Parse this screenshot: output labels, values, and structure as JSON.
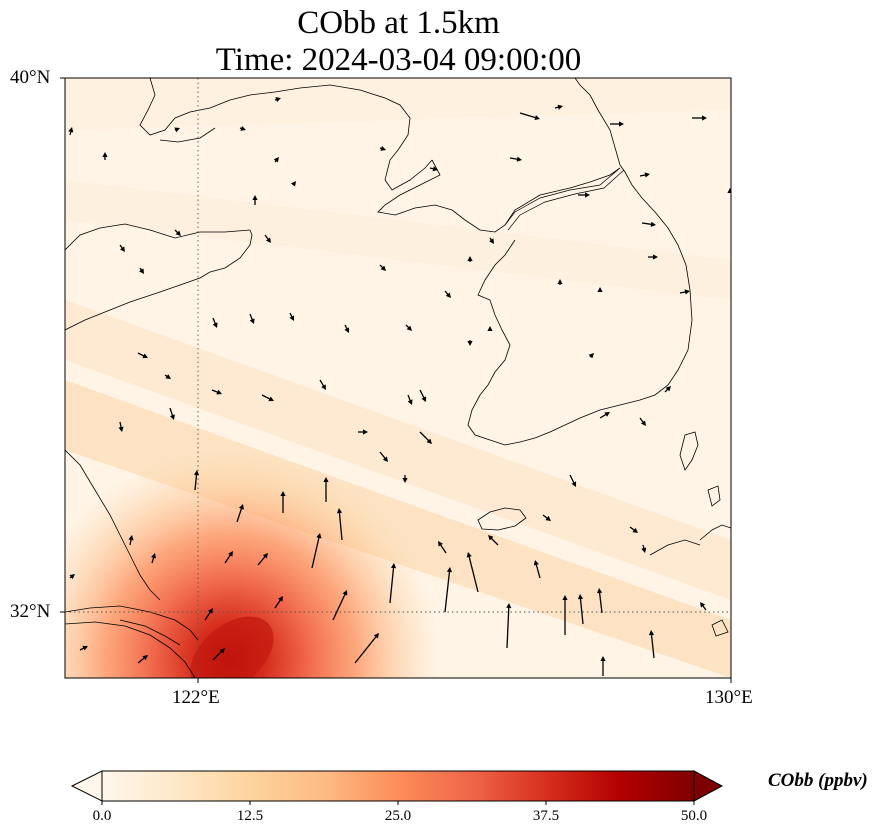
{
  "title": {
    "line1": "CObb at 1.5km",
    "line2": "Time: 2024-03-04 09:00:00"
  },
  "map": {
    "lat_range": [
      31.2,
      40.0
    ],
    "lon_range": [
      118.0,
      130.0
    ],
    "lat_labels": [
      "40°N",
      "32°N"
    ],
    "lon_labels": [
      "122°E",
      "130°E"
    ],
    "gridlines": "dotted",
    "field": "CObb",
    "field_max_location": "southwest corner (Shanghai / Yangtze River mouth)",
    "wind_vectors": true
  },
  "colorbar": {
    "label": "CObb (ppbv)",
    "min": 0.0,
    "max": 50.0,
    "ticks": [
      "0.0",
      "12.5",
      "25.0",
      "37.5",
      "50.0"
    ],
    "colormap": "OrRd",
    "extend": "both",
    "stops": [
      "#fff7ec",
      "#fee8c8",
      "#fdd49e",
      "#fdbb84",
      "#fc8d59",
      "#ef6548",
      "#d7301f",
      "#b30000",
      "#7f0000"
    ]
  },
  "colors": {
    "land_outline": "#000000",
    "background": "#fff7ec"
  }
}
